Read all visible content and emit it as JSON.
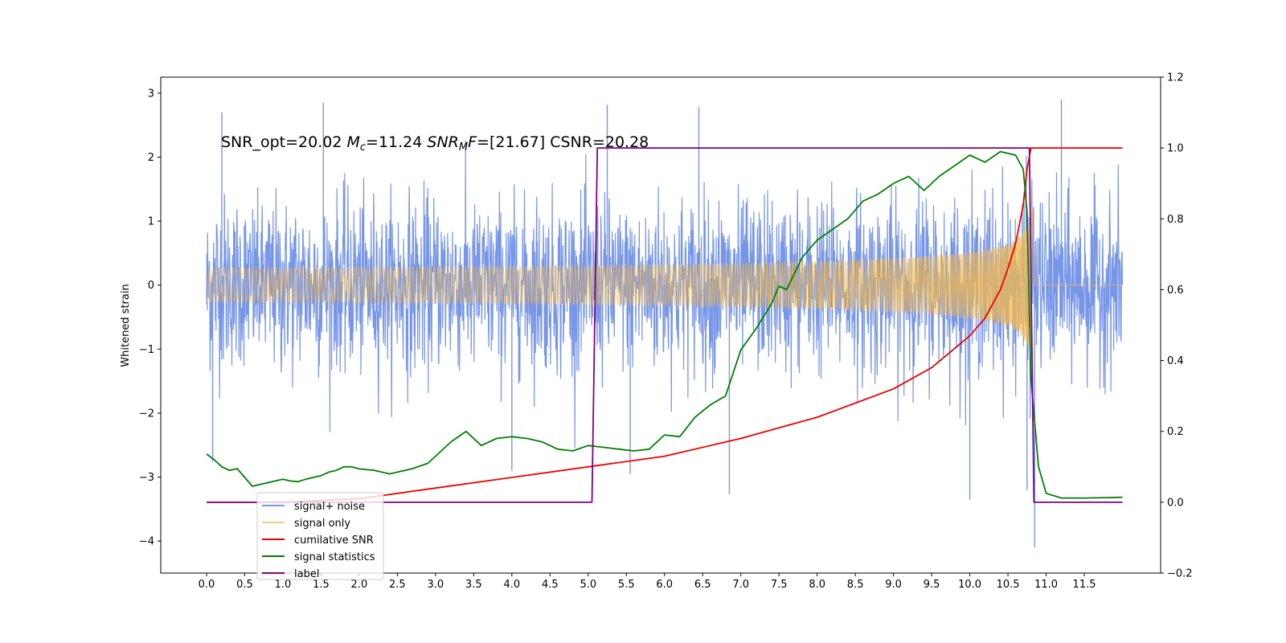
{
  "chart_data": {
    "type": "line",
    "title": "",
    "annotation": {
      "p1": "SNR_opt=20.02 ",
      "p2": "M",
      "p3": "c",
      "p4": "=11.24  ",
      "p5": "SNR",
      "p6": "M",
      "p7": "F",
      "p8": "=[21.67] CSNR=20.28"
    },
    "ylabel": "Whitened strain",
    "xlim": [
      -0.6,
      12.5
    ],
    "ylim_left": [
      -4.5,
      3.25
    ],
    "ylim_right": [
      -0.2,
      1.2
    ],
    "x_ticks": [
      "0.0",
      "0.5",
      "1.0",
      "1.5",
      "2.0",
      "2.5",
      "3.0",
      "3.5",
      "4.0",
      "4.5",
      "5.0",
      "5.5",
      "6.0",
      "6.5",
      "7.0",
      "7.5",
      "8.0",
      "8.5",
      "9.0",
      "9.5",
      "10.0",
      "10.5",
      "11.0",
      "11.5"
    ],
    "y_ticks_left": [
      "3",
      "2",
      "1",
      "0",
      "−1",
      "−2",
      "−3",
      "−4"
    ],
    "y_ticks_right": [
      "1.2",
      "1.0",
      "0.8",
      "0.6",
      "0.4",
      "0.2",
      "0.0",
      "−0.2"
    ],
    "legend": {
      "position": "lower-left",
      "entries": [
        "signal+ noise",
        "signal only",
        "cumilative SNR",
        "signal statistics",
        "label"
      ],
      "ghost_text": "cumilative SNR"
    },
    "series": [
      {
        "name": "signal+ noise",
        "axis": "left",
        "color": "#7796e8",
        "x_range": [
          0,
          12
        ],
        "sigma": 0.9,
        "clip": [
          -4.1,
          2.9
        ],
        "peaks": [
          {
            "x": 0.2,
            "y": 2.7
          },
          {
            "x": 1.53,
            "y": 2.85
          },
          {
            "x": 5.25,
            "y": 2.82
          },
          {
            "x": 6.45,
            "y": 2.78
          },
          {
            "x": 11.2,
            "y": 2.9
          },
          {
            "x": 0.08,
            "y": -2.75
          },
          {
            "x": 4.0,
            "y": -2.9
          },
          {
            "x": 6.85,
            "y": -3.27
          },
          {
            "x": 10.75,
            "y": -3.2
          },
          {
            "x": 10.85,
            "y": -4.1
          },
          {
            "x": 10.0,
            "y": -3.35
          },
          {
            "x": 5.55,
            "y": -2.95
          }
        ]
      },
      {
        "name": "signal only",
        "axis": "left",
        "color": "#f5b94a",
        "type": "chirp",
        "merger_time": 10.82,
        "peak_amplitude": 1.35,
        "ends_at": 10.85
      },
      {
        "name": "cumilative SNR",
        "axis": "right",
        "color": "#ee0000",
        "x": [
          0.0,
          1.0,
          2.0,
          3.0,
          4.0,
          5.0,
          6.0,
          7.0,
          7.5,
          8.0,
          8.5,
          9.0,
          9.5,
          10.0,
          10.2,
          10.4,
          10.5,
          10.6,
          10.7,
          10.75,
          10.8,
          11.0,
          12.0
        ],
        "values": [
          0.0,
          0.0,
          0.01,
          0.04,
          0.07,
          0.1,
          0.13,
          0.18,
          0.21,
          0.24,
          0.28,
          0.32,
          0.38,
          0.47,
          0.52,
          0.6,
          0.66,
          0.73,
          0.84,
          0.94,
          1.0,
          1.0,
          1.0
        ]
      },
      {
        "name": "signal statistics",
        "axis": "right",
        "color": "#008000",
        "x": [
          0.0,
          0.1,
          0.2,
          0.3,
          0.4,
          0.5,
          0.6,
          0.7,
          0.8,
          0.9,
          1.0,
          1.1,
          1.2,
          1.3,
          1.4,
          1.5,
          1.6,
          1.7,
          1.8,
          1.9,
          2.0,
          2.2,
          2.4,
          2.5,
          2.7,
          2.9,
          3.0,
          3.2,
          3.4,
          3.6,
          3.8,
          4.0,
          4.2,
          4.4,
          4.6,
          4.8,
          5.0,
          5.2,
          5.4,
          5.6,
          5.8,
          6.0,
          6.2,
          6.4,
          6.6,
          6.8,
          7.0,
          7.2,
          7.4,
          7.5,
          7.6,
          7.8,
          8.0,
          8.2,
          8.4,
          8.6,
          8.8,
          9.0,
          9.2,
          9.4,
          9.6,
          9.8,
          10.0,
          10.2,
          10.4,
          10.6,
          10.7,
          10.75,
          10.8,
          10.9,
          11.0,
          11.2,
          11.5,
          11.8,
          12.0
        ],
        "values": [
          0.136,
          0.12,
          0.1,
          0.09,
          0.095,
          0.07,
          0.045,
          0.05,
          0.055,
          0.06,
          0.065,
          0.06,
          0.058,
          0.065,
          0.07,
          0.075,
          0.085,
          0.09,
          0.1,
          0.1,
          0.094,
          0.09,
          0.08,
          0.085,
          0.095,
          0.11,
          0.13,
          0.17,
          0.2,
          0.16,
          0.18,
          0.185,
          0.18,
          0.17,
          0.15,
          0.145,
          0.16,
          0.155,
          0.15,
          0.145,
          0.15,
          0.19,
          0.185,
          0.24,
          0.275,
          0.3,
          0.43,
          0.49,
          0.56,
          0.61,
          0.6,
          0.69,
          0.74,
          0.77,
          0.8,
          0.85,
          0.87,
          0.9,
          0.92,
          0.88,
          0.92,
          0.95,
          0.98,
          0.96,
          0.99,
          0.98,
          0.94,
          0.82,
          0.35,
          0.1,
          0.025,
          0.012,
          0.012,
          0.013,
          0.014
        ]
      },
      {
        "name": "label",
        "axis": "right",
        "color": "#800080",
        "x": [
          0.0,
          5.05,
          5.12,
          10.78,
          10.84,
          12.0
        ],
        "values": [
          0,
          0,
          1,
          1,
          0,
          0
        ]
      }
    ]
  }
}
